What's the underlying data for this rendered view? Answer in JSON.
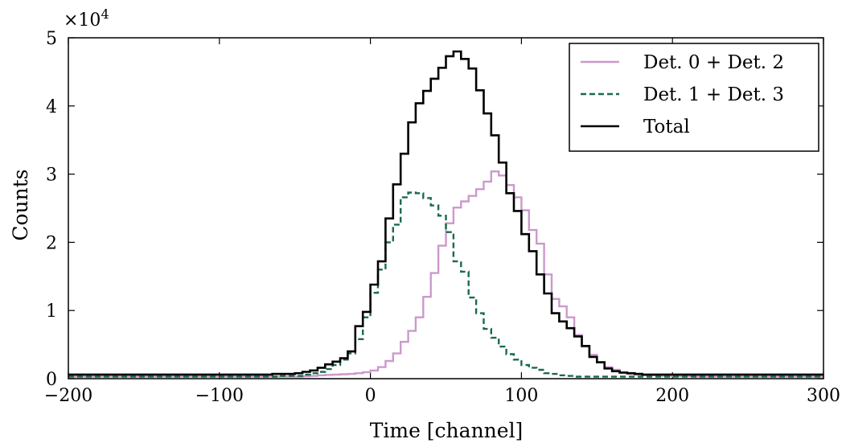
{
  "chart_data": {
    "type": "line",
    "drawstyle": "steps",
    "xlabel": "Time [channel]",
    "ylabel": "Counts",
    "xlim": [
      -200,
      300
    ],
    "ylim": [
      0,
      50000
    ],
    "x_ticks": [
      -200,
      -100,
      0,
      100,
      200,
      300
    ],
    "x_tick_labels": [
      "−200",
      "−100",
      "0",
      "100",
      "200",
      "300"
    ],
    "y_ticks": [
      0,
      10000,
      20000,
      30000,
      40000,
      50000
    ],
    "y_tick_labels": [
      "0",
      "1",
      "2",
      "3",
      "4",
      "5"
    ],
    "y_multiplier_label": "×10",
    "y_multiplier_exponent": "4",
    "grid": false,
    "legend_position": "top-right",
    "bin_width": 5,
    "x": [
      -200,
      -195,
      -190,
      -185,
      -180,
      -175,
      -170,
      -165,
      -160,
      -155,
      -150,
      -145,
      -140,
      -135,
      -130,
      -125,
      -120,
      -115,
      -110,
      -105,
      -100,
      -95,
      -90,
      -85,
      -80,
      -75,
      -70,
      -65,
      -60,
      -55,
      -50,
      -45,
      -40,
      -35,
      -30,
      -25,
      -20,
      -15,
      -10,
      -5,
      0,
      5,
      10,
      15,
      20,
      25,
      30,
      35,
      40,
      45,
      50,
      55,
      60,
      65,
      70,
      75,
      80,
      85,
      90,
      95,
      100,
      105,
      110,
      115,
      120,
      125,
      130,
      135,
      140,
      145,
      150,
      155,
      160,
      165,
      170,
      175,
      180,
      185,
      190,
      195,
      200,
      205,
      210,
      215,
      220,
      225,
      230,
      235,
      240,
      245,
      250,
      255,
      260,
      265,
      270,
      275,
      280,
      285,
      290,
      295
    ],
    "series": [
      {
        "name": "Det. 0 + Det. 2",
        "color": "#cc99cc",
        "linestyle": "solid",
        "values": [
          300,
          300,
          300,
          300,
          300,
          300,
          300,
          300,
          300,
          300,
          300,
          300,
          300,
          300,
          300,
          300,
          300,
          300,
          300,
          300,
          300,
          300,
          300,
          300,
          300,
          300,
          300,
          300,
          300,
          300,
          300,
          350,
          400,
          500,
          550,
          600,
          650,
          700,
          800,
          950,
          1200,
          1700,
          2600,
          3700,
          5400,
          7000,
          9000,
          12000,
          15500,
          19500,
          22800,
          25100,
          26000,
          26800,
          27800,
          28900,
          30400,
          29800,
          28400,
          26600,
          24700,
          21800,
          19800,
          15300,
          11700,
          10600,
          9000,
          6400,
          4700,
          3500,
          2400,
          1700,
          1300,
          900,
          700,
          600,
          500,
          500,
          400,
          400,
          400,
          350,
          350,
          300,
          300,
          300,
          300,
          300,
          300,
          300,
          300,
          300,
          300,
          300,
          300,
          300,
          300,
          300,
          300,
          300
        ]
      },
      {
        "name": "Det. 1 + Det. 3",
        "color": "#1a6b4a",
        "linestyle": "dashed",
        "values": [
          300,
          300,
          300,
          300,
          300,
          300,
          300,
          300,
          300,
          300,
          300,
          300,
          300,
          300,
          300,
          300,
          300,
          300,
          300,
          300,
          300,
          300,
          300,
          300,
          300,
          300,
          300,
          300,
          400,
          400,
          400,
          600,
          800,
          1000,
          1400,
          2000,
          2800,
          3700,
          5800,
          9000,
          12600,
          16000,
          20000,
          22600,
          26600,
          27300,
          27200,
          26500,
          25400,
          23900,
          21500,
          17200,
          15700,
          11900,
          9600,
          7300,
          6000,
          4700,
          3600,
          2800,
          2000,
          1600,
          1300,
          800,
          700,
          500,
          400,
          300,
          300,
          300,
          300,
          300,
          300,
          300,
          300,
          300,
          300,
          300,
          300,
          300,
          300,
          300,
          300,
          300,
          300,
          300,
          300,
          300,
          300,
          300,
          300,
          300,
          300,
          300,
          300,
          300,
          300,
          300,
          300,
          300
        ]
      },
      {
        "name": "Total",
        "color": "#000000",
        "linestyle": "solid",
        "values": [
          600,
          600,
          600,
          600,
          600,
          600,
          600,
          600,
          600,
          600,
          600,
          600,
          600,
          600,
          600,
          600,
          600,
          600,
          600,
          600,
          600,
          600,
          600,
          600,
          600,
          600,
          600,
          700,
          700,
          700,
          800,
          1000,
          1200,
          1600,
          2100,
          2500,
          3000,
          4000,
          7700,
          9800,
          13800,
          17200,
          23500,
          28500,
          33000,
          37600,
          40400,
          42200,
          44000,
          45600,
          47300,
          48000,
          46900,
          45500,
          42300,
          38900,
          35700,
          31700,
          27200,
          24600,
          21200,
          18700,
          15300,
          12500,
          9600,
          8400,
          7400,
          6200,
          4800,
          3200,
          2400,
          1500,
          1100,
          900,
          800,
          700,
          600,
          600,
          600,
          600,
          600,
          600,
          600,
          600,
          600,
          600,
          600,
          600,
          600,
          600,
          600,
          600,
          600,
          600,
          600,
          600,
          600,
          600,
          600,
          600
        ]
      }
    ]
  }
}
